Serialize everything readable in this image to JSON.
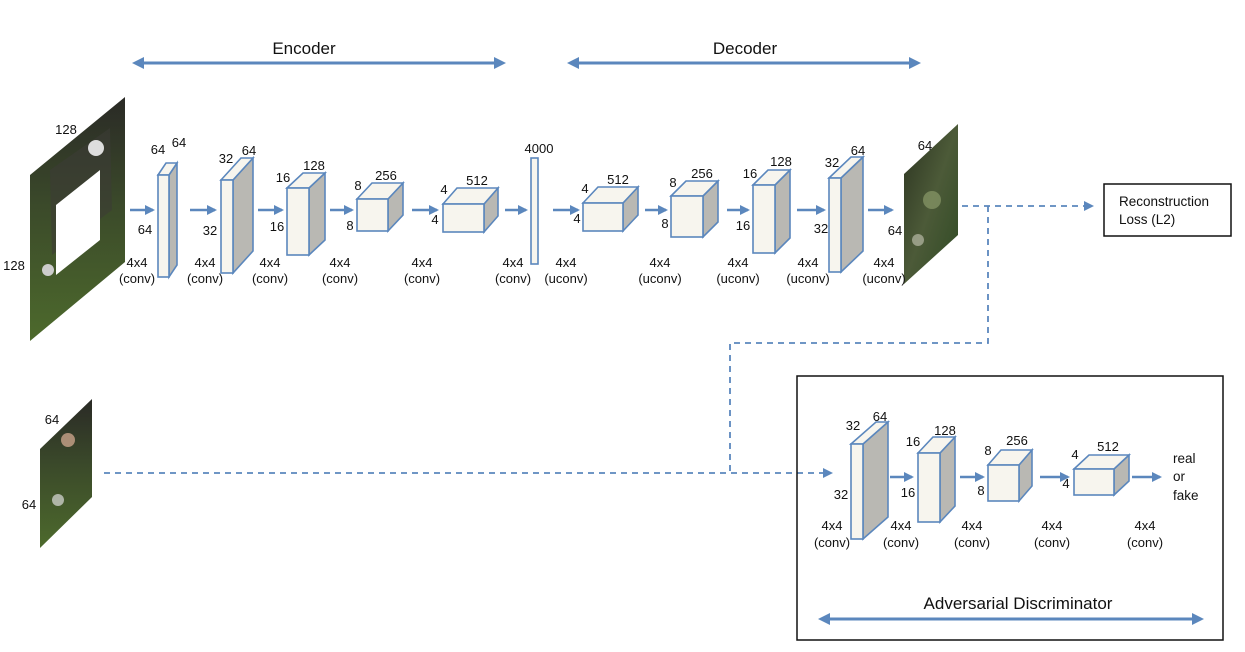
{
  "headers": {
    "encoder": "Encoder",
    "decoder": "Decoder",
    "adversarial": "Adversarial Discriminator"
  },
  "input": {
    "top": "128",
    "left": "128"
  },
  "encoder_blocks": [
    {
      "a": "64",
      "b": "64",
      "c": "64",
      "op1": "4x4",
      "op2": "(conv)"
    },
    {
      "a": "32",
      "b": "64",
      "c": "32",
      "op1": "4x4",
      "op2": "(conv)"
    },
    {
      "a": "16",
      "b": "128",
      "c": "16",
      "op1": "4x4",
      "op2": "(conv)"
    },
    {
      "a": "8",
      "b": "256",
      "c": "8",
      "op1": "4x4",
      "op2": "(conv)"
    },
    {
      "a": "4",
      "b": "512",
      "c": "4",
      "op1": "4x4",
      "op2": "(conv)"
    }
  ],
  "bottleneck": {
    "size": "4000",
    "op1": "4x4",
    "op2": "(conv)"
  },
  "decoder_blocks": [
    {
      "a": "4",
      "b": "512",
      "c": "4",
      "op1": "4x4",
      "op2": "(uconv)"
    },
    {
      "a": "8",
      "b": "256",
      "c": "8",
      "op1": "4x4",
      "op2": "(uconv)"
    },
    {
      "a": "16",
      "b": "128",
      "c": "16",
      "op1": "4x4",
      "op2": "(uconv)"
    },
    {
      "a": "32",
      "b": "64",
      "c": "32",
      "op1": "4x4",
      "op2": "(uconv)"
    }
  ],
  "output": {
    "top": "64",
    "left": "64",
    "op1": "4x4",
    "op2": "(uconv)"
  },
  "recon_box": {
    "line1": "Reconstruction",
    "line2": "Loss (L2)"
  },
  "real_image": {
    "top": "64",
    "left": "64"
  },
  "disc_blocks": [
    {
      "a": "32",
      "b": "64",
      "c": "32",
      "op1": "4x4",
      "op2": "(conv)"
    },
    {
      "a": "16",
      "b": "128",
      "c": "16",
      "op1": "4x4",
      "op2": "(conv)"
    },
    {
      "a": "8",
      "b": "256",
      "c": "8",
      "op1": "4x4",
      "op2": "(conv)"
    },
    {
      "a": "4",
      "b": "512",
      "c": "4",
      "op1": "4x4",
      "op2": "(conv)"
    }
  ],
  "disc_final_op": {
    "op1": "4x4",
    "op2": "(conv)"
  },
  "disc_output": {
    "line1": "real",
    "line2": "or",
    "line3": "fake"
  },
  "colors": {
    "arrow": "#5b87bd",
    "face": "#f7f5ee",
    "side": "#b9b8b3"
  }
}
